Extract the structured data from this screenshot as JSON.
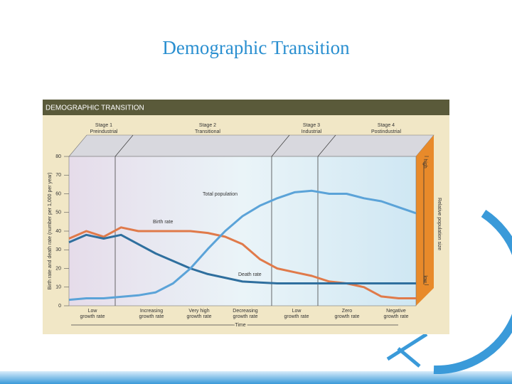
{
  "slide_title": "Demographic Transition",
  "chart_data": {
    "type": "line",
    "title": "DEMOGRAPHIC TRANSITION",
    "stages": [
      [
        "Stage 1",
        "Preindustrial"
      ],
      [
        "Stage 2",
        "Transitional"
      ],
      [
        "Stage 3",
        "Industrial"
      ],
      [
        "Stage 4",
        "Postindustrial"
      ]
    ],
    "growth_labels": [
      [
        "Low",
        "growth rate"
      ],
      [
        "Increasing",
        "growth rate"
      ],
      [
        "Very high",
        "growth rate"
      ],
      [
        "Decreasing",
        "growth rate"
      ],
      [
        "Low",
        "growth rate"
      ],
      [
        "Zero",
        "growth rate"
      ],
      [
        "Negative",
        "growth rate"
      ]
    ],
    "x_label": "Time",
    "y_label": "Birth rate and death rate (number per 1,000 per year)",
    "y2_label": "Relative population size",
    "annotations": [
      "Total population",
      "Birth rate",
      "Death rate"
    ],
    "x": [
      0,
      5,
      10,
      15,
      20,
      25,
      30,
      35,
      40,
      45,
      50,
      55,
      60,
      65,
      70,
      75,
      80,
      85,
      90,
      95,
      100
    ],
    "xlim": [
      0,
      100
    ],
    "ylim": [
      0,
      80
    ],
    "yticks": [
      0,
      10,
      20,
      30,
      40,
      50,
      60,
      70,
      80
    ],
    "y2lim": [
      0,
      100
    ],
    "y2ticks": [
      {
        "value": 14,
        "label": "low"
      },
      {
        "value": 100,
        "label": "high"
      }
    ],
    "series": [
      {
        "name": "Birth rate",
        "color": "#e07a4a",
        "values": [
          36,
          40,
          37,
          42,
          40,
          40,
          40,
          40,
          39,
          37,
          33,
          25,
          20,
          18,
          16,
          13,
          12,
          10,
          5,
          4,
          4
        ]
      },
      {
        "name": "Death rate",
        "color": "#2f6f9e",
        "values": [
          34,
          38,
          36,
          38,
          33,
          28,
          24,
          20,
          17,
          15,
          13,
          12.5,
          12,
          12,
          12,
          12,
          12,
          12,
          12,
          12,
          12
        ]
      },
      {
        "name": "Total population",
        "color": "#5ba3d8",
        "axis": "y2",
        "values": [
          4,
          5,
          5,
          6,
          7,
          9,
          15,
          25,
          38,
          50,
          60,
          67,
          72,
          76,
          77,
          75,
          75,
          72,
          70,
          66,
          62
        ]
      }
    ]
  }
}
